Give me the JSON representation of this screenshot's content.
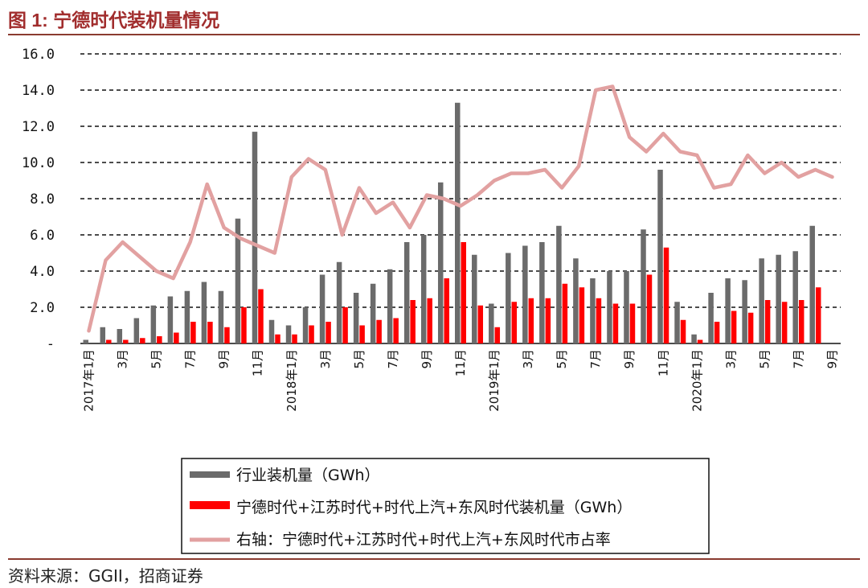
{
  "figure": {
    "title": "图 1:  宁德时代装机量情况",
    "source": "资料来源：GGII，招商证券"
  },
  "colors": {
    "industry": "#6b6b6b",
    "catl": "#ff0000",
    "share": "#e2a1a1",
    "title": "#a12d2d",
    "rule": "#8a3b2f"
  },
  "chart_data": {
    "type": "bar",
    "title": "",
    "xlabel": "",
    "ylabel": "",
    "ylim": [
      0,
      16
    ],
    "y2lim": [
      0,
      80
    ],
    "grid": true,
    "legend_position": "bottom-center",
    "y_ticks": [
      "-",
      "2.0",
      "4.0",
      "6.0",
      "8.0",
      "10.0",
      "12.0",
      "14.0",
      "16.0"
    ],
    "categories": [
      "2017年1月",
      "2017年2月",
      "3月",
      "2017年4月",
      "5月",
      "2017年6月",
      "7月",
      "2017年8月",
      "9月",
      "2017年10月",
      "11月",
      "2017年12月",
      "2018年1月",
      "2018年2月",
      "3月",
      "2018年4月",
      "5月",
      "2018年6月",
      "7月",
      "2018年8月",
      "9月",
      "2018年10月",
      "11月",
      "2018年12月",
      "2019年1月",
      "2019年2月",
      "3月",
      "2019年4月",
      "5月",
      "2019年6月",
      "7月",
      "2019年8月",
      "9月",
      "2019年10月",
      "11月",
      "2019年12月",
      "2020年1月",
      "2020年2月",
      "3月",
      "2020年4月",
      "5月",
      "2020年6月",
      "7月",
      "2020年8月",
      "9月"
    ],
    "x_tick_labels": [
      {
        "index": 0,
        "label": "2017年1月"
      },
      {
        "index": 2,
        "label": "3月"
      },
      {
        "index": 4,
        "label": "5月"
      },
      {
        "index": 6,
        "label": "7月"
      },
      {
        "index": 8,
        "label": "9月"
      },
      {
        "index": 10,
        "label": "11月"
      },
      {
        "index": 12,
        "label": "2018年1月"
      },
      {
        "index": 14,
        "label": "3月"
      },
      {
        "index": 16,
        "label": "5月"
      },
      {
        "index": 18,
        "label": "7月"
      },
      {
        "index": 20,
        "label": "9月"
      },
      {
        "index": 22,
        "label": "11月"
      },
      {
        "index": 24,
        "label": "2019年1月"
      },
      {
        "index": 26,
        "label": "3月"
      },
      {
        "index": 28,
        "label": "5月"
      },
      {
        "index": 30,
        "label": "7月"
      },
      {
        "index": 32,
        "label": "9月"
      },
      {
        "index": 34,
        "label": "11月"
      },
      {
        "index": 36,
        "label": "2020年1月"
      },
      {
        "index": 38,
        "label": "3月"
      },
      {
        "index": 40,
        "label": "5月"
      },
      {
        "index": 42,
        "label": "7月"
      },
      {
        "index": 44,
        "label": "9月"
      }
    ],
    "series": [
      {
        "name": "行业装机量（GWh）",
        "type": "bar",
        "axis": "left",
        "values": [
          0.2,
          0.9,
          0.8,
          1.4,
          2.1,
          2.6,
          2.9,
          3.4,
          2.9,
          6.9,
          11.7,
          1.3,
          1.0,
          2.0,
          3.8,
          4.5,
          2.8,
          3.3,
          4.1,
          5.6,
          6.0,
          8.9,
          13.3,
          4.9,
          2.2,
          5.0,
          5.4,
          5.6,
          6.5,
          4.7,
          3.6,
          4.0,
          4.0,
          6.3,
          9.6,
          2.3,
          0.5,
          2.8,
          3.6,
          3.5,
          4.7,
          4.9,
          5.1,
          6.5,
          0.0
        ]
      },
      {
        "name": "宁德时代+江苏时代+时代上汽+东风时代装机量（GWh）",
        "type": "bar",
        "axis": "left",
        "values": [
          0.0,
          0.2,
          0.2,
          0.3,
          0.4,
          0.6,
          1.2,
          1.2,
          0.9,
          2.0,
          3.0,
          0.5,
          0.5,
          1.0,
          1.2,
          2.0,
          1.0,
          1.3,
          1.4,
          2.4,
          2.5,
          3.6,
          5.6,
          2.1,
          0.9,
          2.3,
          2.5,
          2.5,
          3.3,
          3.1,
          2.5,
          2.2,
          2.2,
          3.8,
          5.3,
          1.3,
          0.2,
          1.2,
          1.8,
          1.7,
          2.4,
          2.3,
          2.4,
          3.1,
          0.0
        ]
      },
      {
        "name": "右轴：宁德时代+江苏时代+时代上汽+东风时代市占率",
        "type": "line",
        "axis": "right",
        "values": [
          3.5,
          23,
          28,
          24,
          20,
          18,
          28,
          44,
          32,
          29,
          27,
          25,
          46,
          51,
          48,
          30,
          43,
          36,
          39,
          32,
          41,
          40,
          38,
          41,
          45,
          47,
          47,
          48,
          43,
          49,
          70,
          71,
          57,
          53,
          58,
          53,
          52,
          43,
          44,
          52,
          47,
          50,
          46,
          48,
          46
        ]
      }
    ]
  },
  "legend": {
    "items": [
      {
        "label": "行业装机量（GWh）"
      },
      {
        "label": "宁德时代+江苏时代+时代上汽+东风时代装机量（GWh）"
      },
      {
        "label": "右轴：宁德时代+江苏时代+时代上汽+东风时代市占率"
      }
    ]
  }
}
